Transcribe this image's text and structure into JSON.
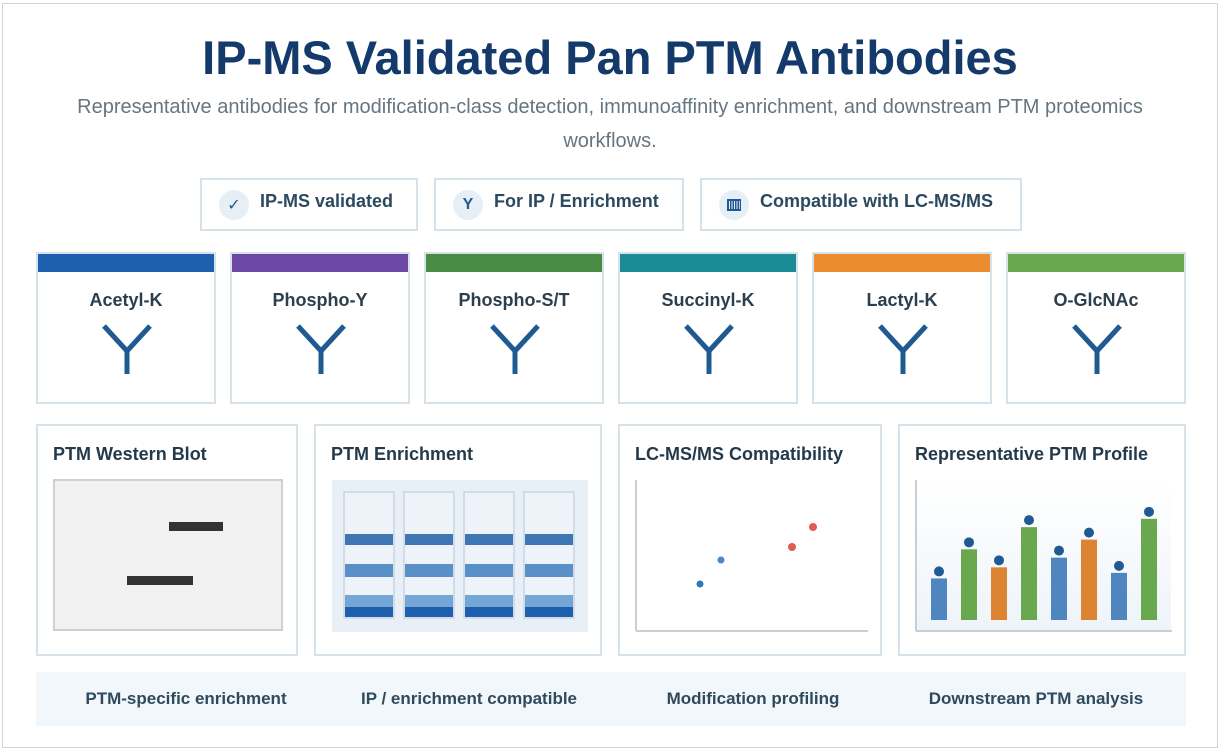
{
  "header": {
    "title": "IP-MS Validated Pan PTM Antibodies",
    "subtitle": "Representative antibodies for modification-class detection, immunoaffinity enrichment, and downstream PTM proteomics workflows."
  },
  "badges": [
    {
      "icon": "check-icon",
      "glyph": "✓",
      "label": "IP-MS validated"
    },
    {
      "icon": "antibody-y-icon",
      "glyph": "Y",
      "label": "For IP / Enrichment"
    },
    {
      "icon": "barcode-icon",
      "glyph": "",
      "label": "Compatible with LC-MS/MS"
    }
  ],
  "ptm_cards": [
    {
      "name": "Acetyl-K",
      "color": "#1f5fb0"
    },
    {
      "name": "Phospho-Y",
      "color": "#6f48a6"
    },
    {
      "name": "Phospho-S/T",
      "color": "#4a8c44"
    },
    {
      "name": "Succinyl-K",
      "color": "#1a8c98"
    },
    {
      "name": "Lactyl-K",
      "color": "#eb8c2e"
    },
    {
      "name": "O-GlcNAc",
      "color": "#6aa84f"
    }
  ],
  "panels": {
    "western_blot": {
      "title": "PTM Western Blot"
    },
    "enrichment": {
      "title": "PTM Enrichment"
    },
    "lcms": {
      "title": "LC-MS/MS Compatibility"
    },
    "profile": {
      "title": "Representative PTM Profile"
    }
  },
  "chart_data": {
    "type": "bar",
    "title": "Representative PTM Profile",
    "xlabel": "",
    "ylabel": "",
    "ylim": [
      0,
      1
    ],
    "series": [
      {
        "values": [
          0.3,
          0.51,
          0.38,
          0.67,
          0.45,
          0.58,
          0.34,
          0.73
        ],
        "colors": [
          "#4f86c0",
          "#6aa84f",
          "#dd8432",
          "#6aa84f",
          "#4f86c0",
          "#dd8432",
          "#4f86c0",
          "#6aa84f"
        ]
      }
    ],
    "point_markers": "dark-blue dot above each bar"
  },
  "footer": {
    "items": [
      "PTM-specific enrichment",
      "IP / enrichment compatible",
      "Modification profiling",
      "Downstream PTM analysis"
    ]
  }
}
